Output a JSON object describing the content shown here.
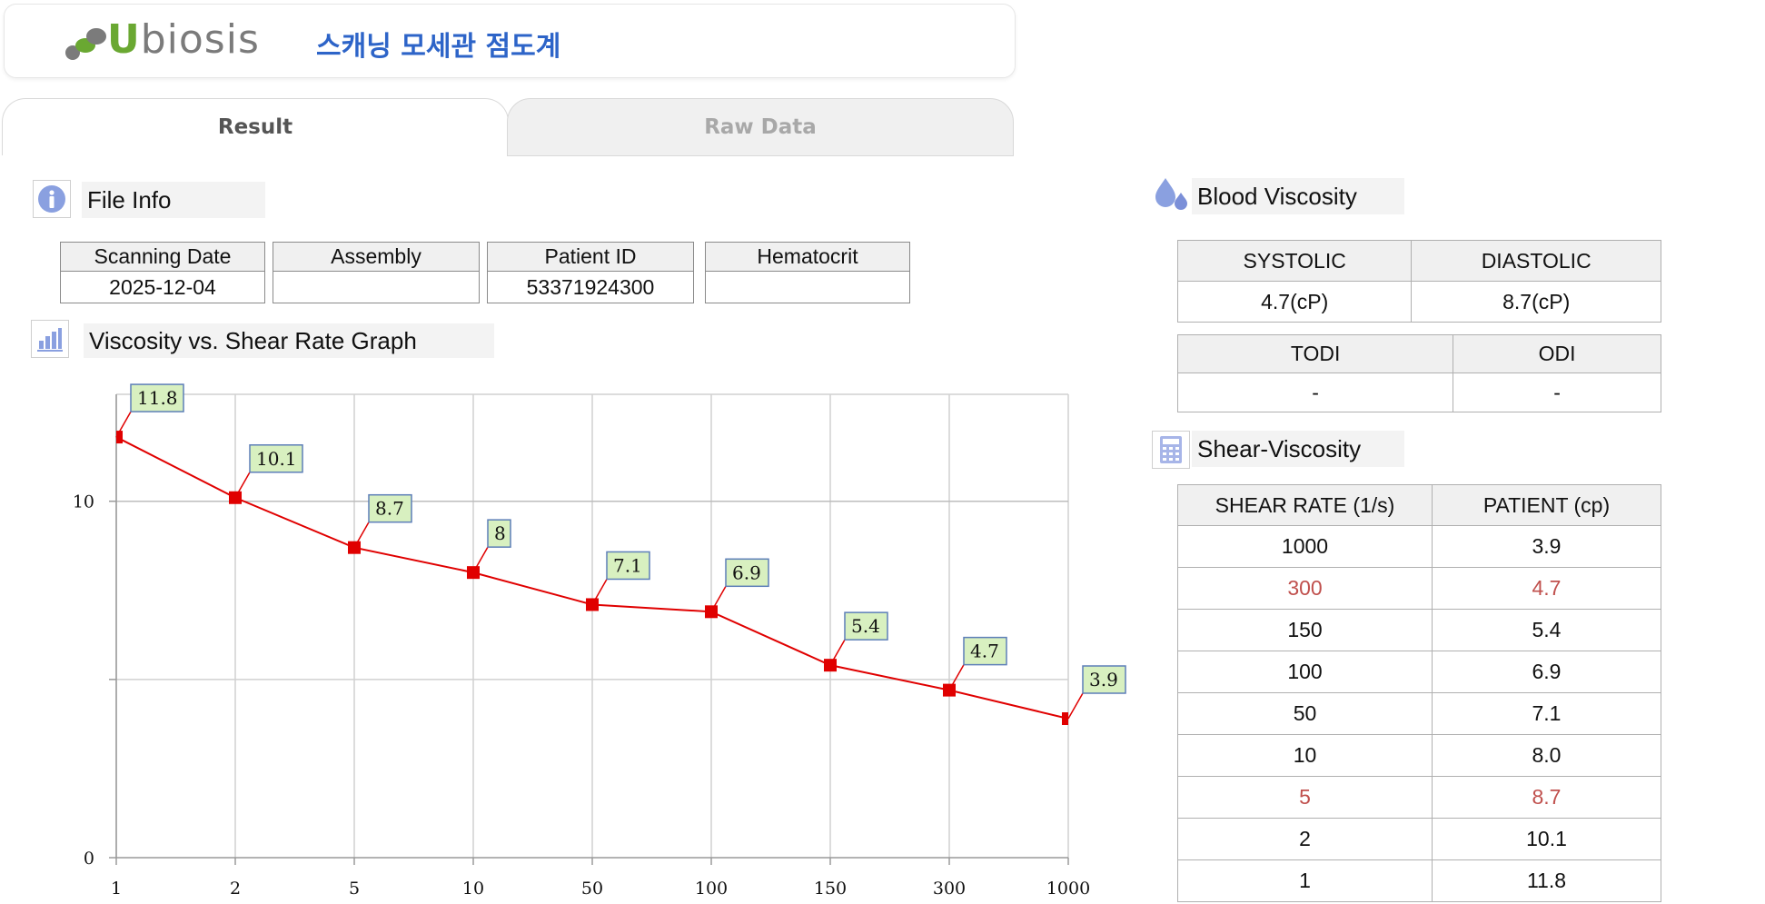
{
  "header": {
    "logo_text": "Ubiosis",
    "app_title": "스캐닝 모세관 점도계"
  },
  "tabs": [
    {
      "label": "Result",
      "active": true
    },
    {
      "label": "Raw Data",
      "active": false
    }
  ],
  "file_info": {
    "title": "File Info",
    "columns": [
      {
        "header": "Scanning Date",
        "value": "2025-12-04"
      },
      {
        "header": "Assembly",
        "value": ""
      },
      {
        "header": "Patient ID",
        "value": "53371924300"
      },
      {
        "header": "Hematocrit",
        "value": ""
      }
    ]
  },
  "graph": {
    "title": "Viscosity vs. Shear Rate Graph"
  },
  "blood_viscosity": {
    "title": "Blood Viscosity",
    "row1": {
      "headers": [
        "SYSTOLIC",
        "DIASTOLIC"
      ],
      "values": [
        "4.7(cP)",
        "8.7(cP)"
      ]
    },
    "row2": {
      "headers": [
        "TODI",
        "ODI"
      ],
      "values": [
        "-",
        "-"
      ]
    }
  },
  "shear_viscosity": {
    "title": "Shear-Viscosity",
    "headers": [
      "SHEAR RATE (1/s)",
      "PATIENT (cp)"
    ],
    "rows": [
      {
        "rate": "1000",
        "patient": "3.9",
        "highlight": false
      },
      {
        "rate": "300",
        "patient": "4.7",
        "highlight": true
      },
      {
        "rate": "150",
        "patient": "5.4",
        "highlight": false
      },
      {
        "rate": "100",
        "patient": "6.9",
        "highlight": false
      },
      {
        "rate": "50",
        "patient": "7.1",
        "highlight": false
      },
      {
        "rate": "10",
        "patient": "8.0",
        "highlight": false
      },
      {
        "rate": "5",
        "patient": "8.7",
        "highlight": true
      },
      {
        "rate": "2",
        "patient": "10.1",
        "highlight": false
      },
      {
        "rate": "1",
        "patient": "11.8",
        "highlight": false
      }
    ]
  },
  "colors": {
    "accent_blue": "#2d64c8",
    "logo_green": "#6aa832",
    "series_red": "#e00000",
    "label_green": "#d8f0c0",
    "highlight_red": "#c0504d"
  },
  "icons": {
    "file_info": "info-icon",
    "graph": "bar-chart-icon",
    "blood_viscosity": "droplet-icon",
    "shear_viscosity": "calculator-icon"
  },
  "chart_data": {
    "type": "line",
    "categories": [
      "1",
      "2",
      "5",
      "10",
      "50",
      "100",
      "150",
      "300",
      "1000"
    ],
    "series": [
      {
        "values": [
          11.8,
          10.1,
          8.7,
          8,
          7.1,
          6.9,
          5.4,
          4.7,
          3.9
        ],
        "data_labels": [
          "11.8",
          "10.1",
          "8.7",
          "8",
          "7.1",
          "6.9",
          "5.4",
          "4.7",
          "3.9"
        ]
      }
    ],
    "ylim": [
      0,
      13
    ],
    "yticks": [
      0,
      10
    ],
    "grid": true,
    "xlabel": "",
    "ylabel": ""
  }
}
